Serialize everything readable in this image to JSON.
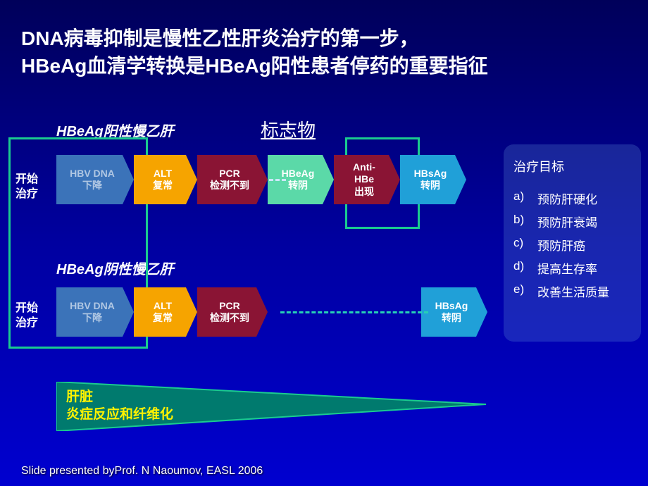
{
  "title": "DNA病毒抑制是慢性乙性肝炎治疗的第一步，\nHBeAg血清学转换是HBeAg阳性患者停药的重要指征",
  "subtitle1": "HBeAg阳性慢乙肝",
  "subtitle2": "HBeAg阴性慢乙肝",
  "markerLabel": "标志物",
  "startLabel": "开始\n治疗",
  "steps": {
    "hbvdna": {
      "text": "HBV DNA\n下降",
      "bg": "#3b73b9",
      "muted": true
    },
    "alt": {
      "text": "ALT\n复常",
      "bg": "#f6a400"
    },
    "pcr": {
      "text": "PCR\n检测不到",
      "bg": "#8a1434"
    },
    "hbeag": {
      "text": "HBeAg\n转阴",
      "bg": "#5bd9a8"
    },
    "antihbe": {
      "text": "Anti-\nHBe\n出现",
      "bg": "#8a1434"
    },
    "hbsag": {
      "text": "HBsAg\n转阴",
      "bg": "#20a0d8"
    }
  },
  "goals": {
    "title": "治疗目标",
    "items": [
      {
        "letter": "a)",
        "text": "预防肝硬化"
      },
      {
        "letter": "b)",
        "text": "预防肝衰竭"
      },
      {
        "letter": "c)",
        "text": "预防肝癌"
      },
      {
        "letter": "d)",
        "text": "提高生存率"
      },
      {
        "letter": "e)",
        "text": "改善生活质量"
      }
    ]
  },
  "liver": "肝脏\n炎症反应和纤维化",
  "credit": "Slide presented byProf. N Naoumov, EASL 2006",
  "colors": {
    "greenBox": "#1acb8f",
    "dashWhite": "#cce8ff",
    "dashTeal": "#27d0b5",
    "triangleFill": "#007a6e",
    "triangleStroke": "#1acb8f",
    "liverText": "#fff200"
  }
}
